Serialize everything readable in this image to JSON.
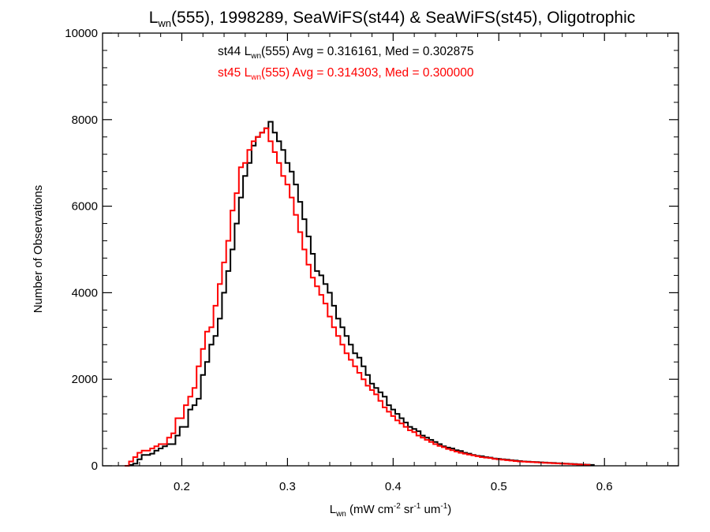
{
  "title": {
    "prefix": "L",
    "prefix_sub": "wn",
    "rest": "(555), 1998289, SeaWiFS(st44) & SeaWiFS(st45), Oligotrophic"
  },
  "annotations": [
    {
      "pre": "st44 L",
      "sub": "wn",
      "post": "(555) Avg = 0.316161, Med = 0.302875",
      "color": "#000000"
    },
    {
      "pre": "st45 L",
      "sub": "wn",
      "post": "(555) Avg = 0.314303, Med = 0.300000",
      "color": "#ff0000"
    }
  ],
  "xlabel": {
    "base": "L",
    "base_sub": "wn",
    "p1": " (mW cm",
    "s1": "-2",
    "p2": " sr",
    "s2": "-1",
    "p3": " um",
    "s3": "-1",
    "p4": ")"
  },
  "ylabel": "Number of Observations",
  "chart_data": {
    "type": "histogram-step",
    "xlim": [
      0.125,
      0.67
    ],
    "ylim": [
      0,
      10000
    ],
    "x_ticks": [
      0.2,
      0.3,
      0.4,
      0.5,
      0.6
    ],
    "x_tick_labels": [
      "0.2",
      "0.3",
      "0.4",
      "0.5",
      "0.6"
    ],
    "y_ticks": [
      0,
      2000,
      4000,
      6000,
      8000,
      10000
    ],
    "y_tick_labels": [
      "0",
      "2000",
      "4000",
      "6000",
      "8000",
      "10000"
    ],
    "bin_width": 0.004,
    "series": [
      {
        "name": "st44",
        "color": "#000000",
        "x_start": 0.15,
        "counts": [
          20,
          50,
          150,
          250,
          250,
          280,
          350,
          400,
          450,
          500,
          500,
          700,
          900,
          900,
          1300,
          1400,
          1550,
          2100,
          2400,
          2800,
          3000,
          3400,
          4000,
          4500,
          5000,
          5600,
          6200,
          6700,
          7000,
          7400,
          7600,
          7700,
          7800,
          7950,
          7700,
          7500,
          7300,
          7000,
          6800,
          6500,
          6100,
          5700,
          5300,
          4900,
          4500,
          4400,
          4200,
          4000,
          3700,
          3400,
          3200,
          3000,
          2800,
          2600,
          2500,
          2300,
          2100,
          1900,
          1800,
          1700,
          1600,
          1400,
          1300,
          1200,
          1100,
          1000,
          900,
          850,
          800,
          700,
          650,
          600,
          550,
          500,
          450,
          420,
          400,
          360,
          340,
          300,
          280,
          250,
          230,
          220,
          200,
          190,
          170,
          160,
          150,
          140,
          130,
          120,
          110,
          100,
          95,
          90,
          85,
          80,
          75,
          70,
          65,
          60,
          55,
          50,
          45,
          40,
          35,
          30,
          25,
          20
        ]
      },
      {
        "name": "st45",
        "color": "#ff0000",
        "x_start": 0.146,
        "counts": [
          0,
          100,
          200,
          300,
          350,
          350,
          400,
          450,
          500,
          500,
          650,
          750,
          1100,
          1100,
          1400,
          1600,
          1800,
          2300,
          2700,
          3100,
          3200,
          3700,
          4200,
          4700,
          5200,
          5900,
          6300,
          6900,
          7000,
          7300,
          7500,
          7600,
          7700,
          7800,
          7500,
          7250,
          7000,
          6700,
          6500,
          6200,
          5800,
          5400,
          5000,
          4650,
          4350,
          4150,
          3950,
          3750,
          3450,
          3200,
          3000,
          2800,
          2600,
          2450,
          2300,
          2150,
          2000,
          1850,
          1750,
          1650,
          1500,
          1350,
          1250,
          1150,
          1050,
          980,
          900,
          820,
          780,
          700,
          650,
          600,
          550,
          500,
          460,
          430,
          390,
          360,
          330,
          300,
          280,
          260,
          240,
          220,
          200,
          190,
          180,
          160,
          150,
          140,
          130,
          120,
          110,
          100,
          95,
          90,
          85,
          80,
          75,
          70,
          65,
          60,
          55,
          50,
          45,
          40,
          35,
          30,
          25,
          20
        ]
      }
    ]
  }
}
